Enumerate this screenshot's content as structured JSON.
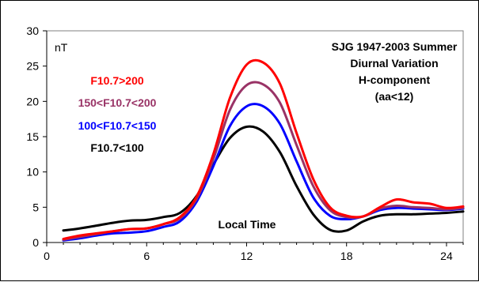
{
  "chart_data": {
    "type": "line",
    "unit_label": "nT",
    "xlabel": "Local Time",
    "xlim": [
      0,
      25
    ],
    "ylim": [
      0,
      30
    ],
    "x_ticks": [
      0,
      6,
      12,
      18,
      24
    ],
    "y_ticks": [
      0,
      5,
      10,
      15,
      20,
      25,
      30
    ],
    "grid": false,
    "title_lines": [
      "SJG 1947-2003 Summer",
      "Diurnal Variation",
      "H-component",
      "(aa<12)"
    ],
    "x": [
      1,
      2,
      3,
      4,
      5,
      6,
      7,
      8,
      9,
      10,
      11,
      12,
      13,
      14,
      15,
      16,
      17,
      18,
      19,
      20,
      21,
      22,
      23,
      24,
      25
    ],
    "series": [
      {
        "name": "F10.7>200",
        "color": "#ff0000",
        "values": [
          0.5,
          1.0,
          1.3,
          1.6,
          1.9,
          2.0,
          2.6,
          3.6,
          6.5,
          12.5,
          20.5,
          25.2,
          25.5,
          22.5,
          15.5,
          9.0,
          5.0,
          3.8,
          3.7,
          5.0,
          6.1,
          5.7,
          5.5,
          4.9,
          5.1
        ]
      },
      {
        "name": "150<F10.7<200",
        "color": "#993366",
        "values": [
          0.4,
          0.8,
          1.2,
          1.6,
          1.9,
          2.0,
          2.6,
          3.4,
          6.2,
          11.8,
          18.8,
          22.3,
          22.4,
          19.8,
          13.8,
          8.0,
          4.6,
          3.6,
          3.7,
          4.8,
          5.2,
          5.0,
          4.9,
          4.7,
          4.9
        ]
      },
      {
        "name": "100<F10.7<150",
        "color": "#0000ff",
        "values": [
          0.3,
          0.6,
          1.0,
          1.3,
          1.4,
          1.6,
          2.2,
          3.0,
          5.8,
          10.8,
          16.5,
          19.3,
          19.3,
          16.8,
          11.5,
          6.4,
          3.8,
          3.3,
          3.7,
          4.6,
          4.9,
          4.8,
          4.7,
          4.6,
          4.8
        ]
      },
      {
        "name": "F10.7<100",
        "color": "#000000",
        "values": [
          1.7,
          2.0,
          2.4,
          2.8,
          3.1,
          3.2,
          3.6,
          4.2,
          6.6,
          11.0,
          14.8,
          16.4,
          15.7,
          12.8,
          8.0,
          4.0,
          1.8,
          1.7,
          3.0,
          3.8,
          4.0,
          4.0,
          4.1,
          4.2,
          4.4
        ]
      }
    ]
  }
}
